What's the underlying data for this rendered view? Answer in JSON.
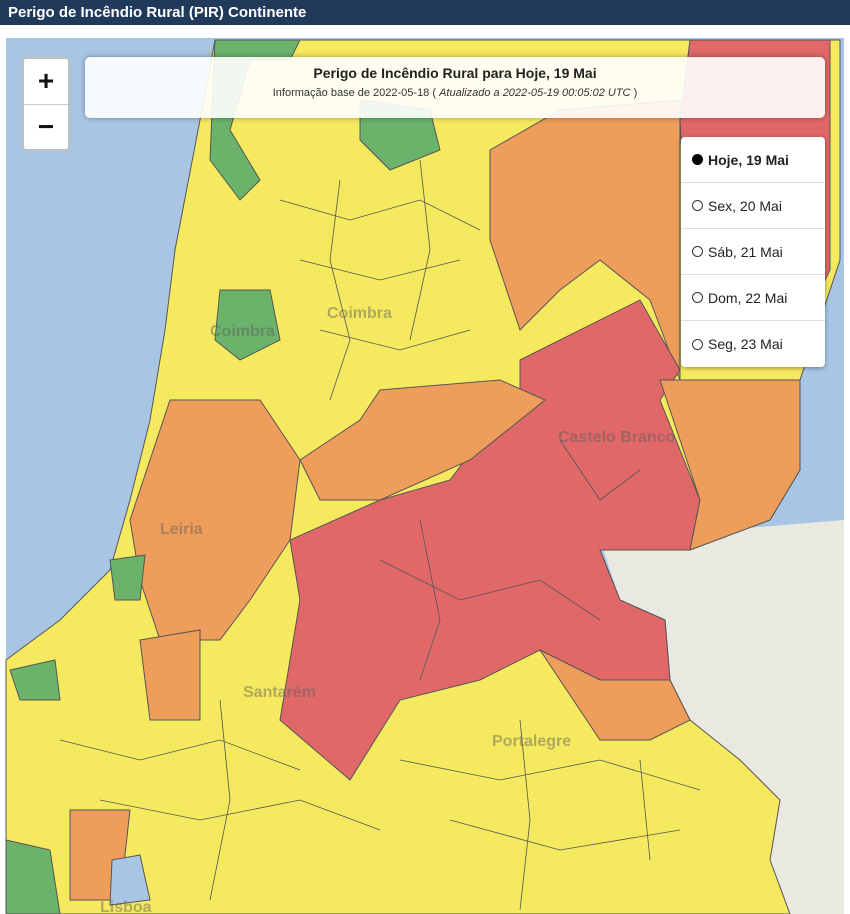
{
  "header": {
    "title": "Perigo de Incêndio Rural (PIR) Continente"
  },
  "map": {
    "zoom_in": "+",
    "zoom_out": "−",
    "info": {
      "title": "Perigo de Incêndio Rural para Hoje, 19 Mai",
      "base": "Informação base de 2022-05-18 (",
      "updated": "Atualizado a 2022-05-19 00:05:02 UTC",
      "close": ")"
    },
    "days": [
      {
        "label": "Hoje, 19 Mai",
        "selected": true
      },
      {
        "label": "Sex, 20 Mai",
        "selected": false
      },
      {
        "label": "Sáb, 21 Mai",
        "selected": false
      },
      {
        "label": "Dom, 22 Mai",
        "selected": false
      },
      {
        "label": "Seg, 23 Mai",
        "selected": false
      }
    ],
    "places": [
      "Coimbra",
      "Coimbra",
      "Leiria",
      "Castelo Branco",
      "Santarém",
      "Portalegre",
      "Lisboa"
    ]
  }
}
